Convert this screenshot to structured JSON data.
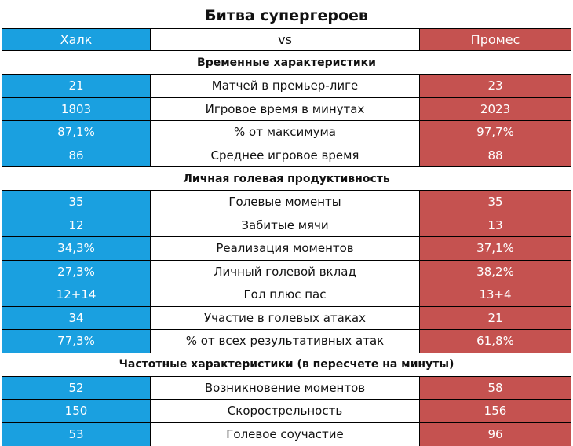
{
  "title": "Битва супергероев",
  "header": {
    "left": "Халк",
    "middle": "vs",
    "right": "Промес"
  },
  "sections": [
    {
      "title": "Временные характеристики",
      "rows": [
        {
          "left": "21",
          "label": "Матчей в премьер-лиге",
          "right": "23"
        },
        {
          "left": "1803",
          "label": "Игровое время в минутах",
          "right": "2023"
        },
        {
          "left": "87,1%",
          "label": "% от максимума",
          "right": "97,7%"
        },
        {
          "left": "86",
          "label": "Среднее игровое время",
          "right": "88"
        }
      ]
    },
    {
      "title": "Личная голевая продуктивность",
      "rows": [
        {
          "left": "35",
          "label": "Голевые моменты",
          "right": "35"
        },
        {
          "left": "12",
          "label": "Забитые мячи",
          "right": "13"
        },
        {
          "left": "34,3%",
          "label": "Реализация моментов",
          "right": "37,1%"
        },
        {
          "left": "27,3%",
          "label": "Личный голевой вклад",
          "right": "38,2%"
        },
        {
          "left": "12+14",
          "label": "Гол плюс пас",
          "right": "13+4"
        },
        {
          "left": "34",
          "label": "Участие в голевых атаках",
          "right": "21"
        },
        {
          "left": "77,3%",
          "label": "% от всех результативных атак",
          "right": "61,8%"
        }
      ]
    },
    {
      "title": "Частотные характеристики (в пересчете на минуты)",
      "rows": [
        {
          "left": "52",
          "label": "Возникновение моментов",
          "right": "58"
        },
        {
          "left": "150",
          "label": "Скорострельность",
          "right": "156"
        },
        {
          "left": "53",
          "label": "Голевое соучастие",
          "right": "96"
        }
      ]
    }
  ],
  "colors": {
    "left_bg": "#1aa0e0",
    "right_bg": "#c55250"
  }
}
